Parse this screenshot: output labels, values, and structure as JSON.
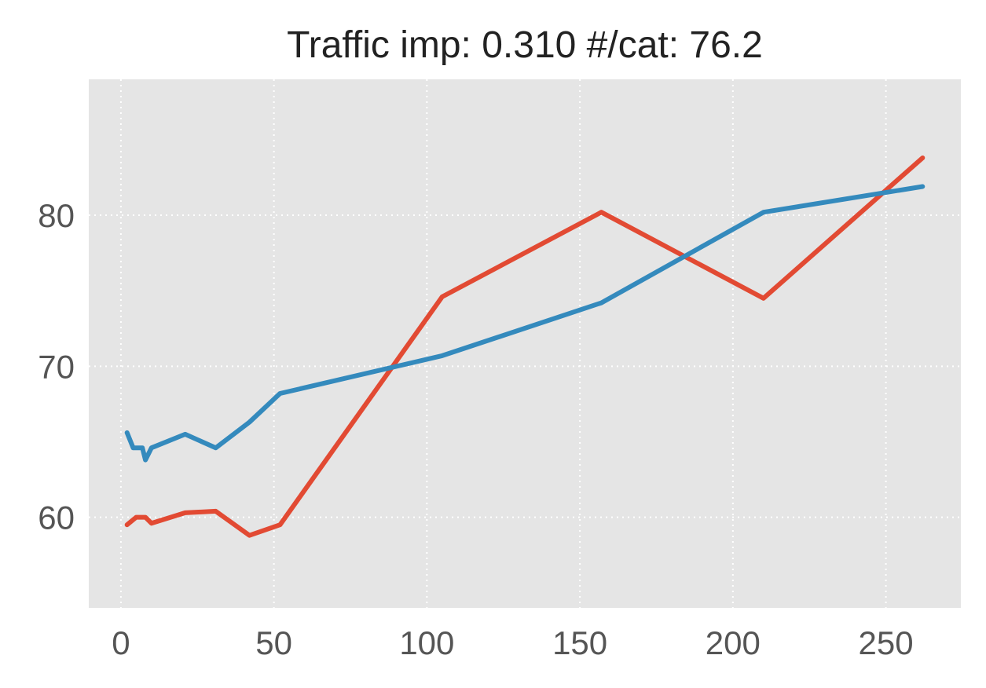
{
  "chart_data": {
    "type": "line",
    "title": "Traffic imp: 0.310 #/cat: 76.2",
    "xlabel": "",
    "ylabel": "",
    "xlim": [
      -10.5,
      274.5
    ],
    "ylim": [
      54,
      89
    ],
    "xticks": [
      0,
      50,
      100,
      150,
      200,
      250
    ],
    "yticks": [
      60,
      70,
      80
    ],
    "grid": true,
    "legend": "none",
    "series": [
      {
        "color": "#E24A33",
        "x": [
          2,
          5,
          8,
          10,
          21,
          31,
          42,
          52,
          105,
          157,
          210,
          262
        ],
        "y": [
          59.5,
          60.0,
          60.0,
          59.6,
          60.3,
          60.4,
          58.8,
          59.5,
          74.6,
          80.2,
          74.5,
          83.8
        ]
      },
      {
        "color": "#348ABD",
        "x": [
          2,
          4,
          7,
          8,
          10,
          21,
          31,
          42,
          52,
          105,
          157,
          210,
          262
        ],
        "y": [
          65.6,
          64.6,
          64.6,
          63.8,
          64.6,
          65.5,
          64.6,
          66.3,
          68.2,
          70.7,
          74.2,
          80.2,
          81.9
        ]
      }
    ]
  },
  "style": {
    "plot_background": "#E5E5E5",
    "grid_color": "#FFFFFF"
  }
}
